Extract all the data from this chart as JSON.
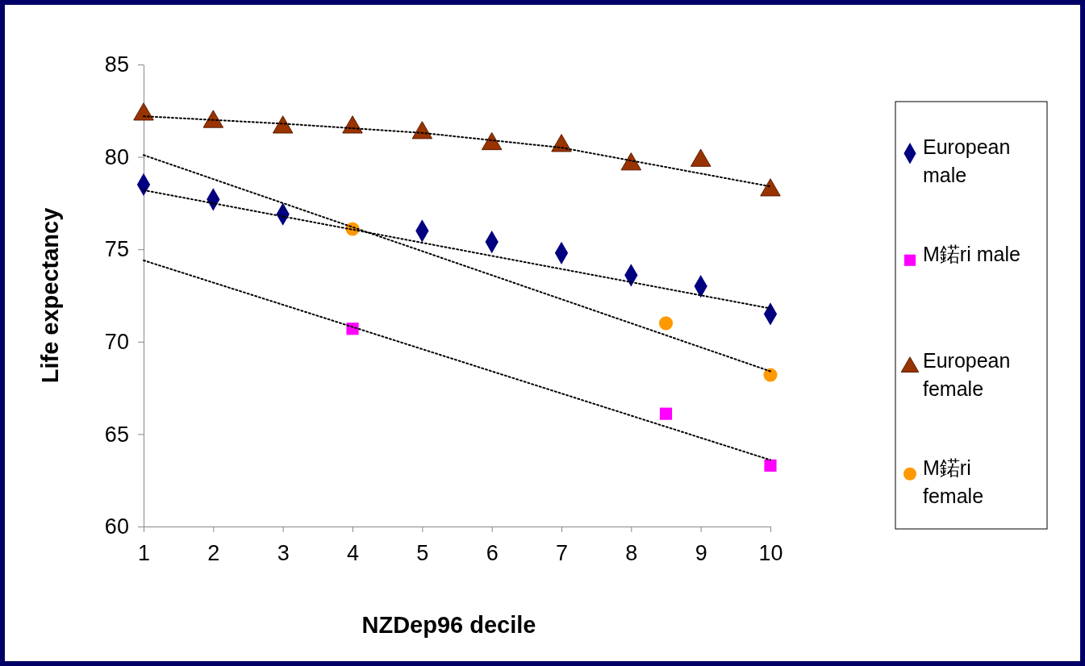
{
  "chart_data": {
    "type": "scatter",
    "xlabel": "NZDep96 decile",
    "ylabel": "Life expectancy",
    "xlim": [
      1,
      10
    ],
    "ylim": [
      60,
      85
    ],
    "xticks": [
      1,
      2,
      3,
      4,
      5,
      6,
      7,
      8,
      9,
      10
    ],
    "yticks": [
      60,
      65,
      70,
      75,
      80,
      85
    ],
    "grid": false,
    "legend": "right",
    "series": [
      {
        "name": "European male",
        "color": "#000080",
        "marker": "diamond",
        "x": [
          1,
          2,
          3,
          5,
          6,
          7,
          8,
          9,
          10
        ],
        "values": [
          78.5,
          77.7,
          76.9,
          76.0,
          75.4,
          74.8,
          73.6,
          73.0,
          71.5
        ]
      },
      {
        "name": "M鍩ri male",
        "color": "#ff00ff",
        "marker": "square",
        "x": [
          4,
          8.5,
          10
        ],
        "values": [
          70.7,
          66.1,
          63.3
        ]
      },
      {
        "name": "European female",
        "color": "#993300",
        "marker": "triangle",
        "x": [
          1,
          2,
          3,
          4,
          5,
          6,
          7,
          8,
          9,
          10
        ],
        "values": [
          82.3,
          81.9,
          81.6,
          81.6,
          81.3,
          80.7,
          80.6,
          79.6,
          79.8,
          78.2
        ]
      },
      {
        "name": "M鍩ri female",
        "color": "#ff9900",
        "marker": "circle",
        "x": [
          4,
          8.5,
          10
        ],
        "values": [
          76.1,
          71.0,
          68.2
        ]
      },
      {
        "type": "line",
        "color": "#000000",
        "line_style": "dotted",
        "x": [
          1,
          10
        ],
        "values": [
          78.2,
          71.8
        ]
      },
      {
        "type": "line",
        "color": "#000000",
        "line_style": "dotted",
        "x": [
          1,
          10
        ],
        "values": [
          74.4,
          63.6
        ]
      },
      {
        "type": "line",
        "color": "#000000",
        "line_style": "dotted",
        "x": [
          1,
          3,
          5,
          7,
          10
        ],
        "values": [
          82.2,
          81.8,
          81.3,
          80.5,
          78.4
        ]
      },
      {
        "type": "line",
        "color": "#000000",
        "line_style": "dotted",
        "x": [
          1,
          10
        ],
        "values": [
          80.1,
          68.4
        ]
      }
    ]
  }
}
